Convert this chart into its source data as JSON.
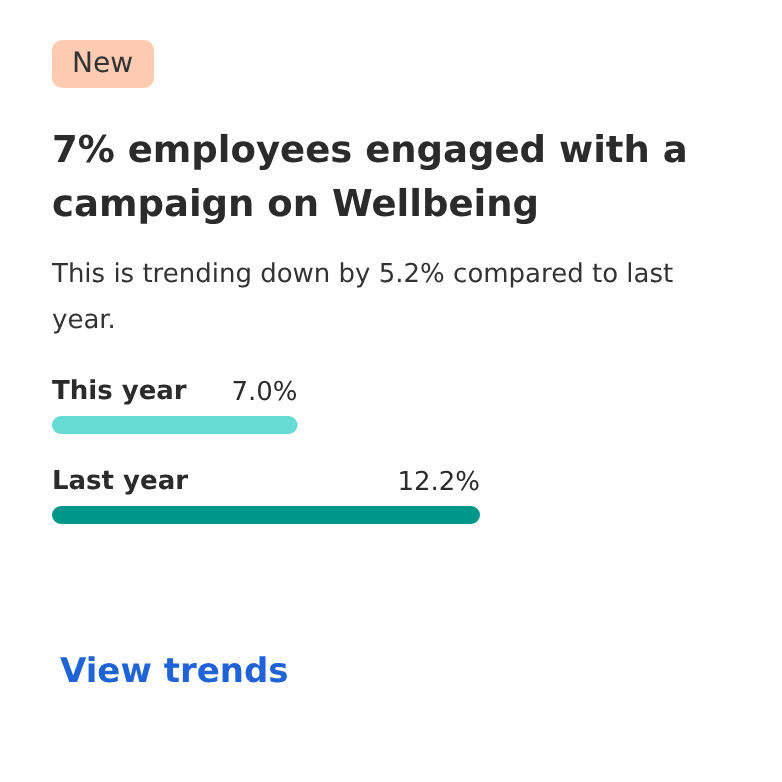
{
  "chart_data": {
    "type": "bar",
    "orientation": "horizontal",
    "tick_labels": "y",
    "title": "7% employees engaged with a campaign on Wellbeing",
    "subtitle": "This is trending down by 5.2% compared to last year.",
    "categories": [
      "This year",
      "Last year"
    ],
    "values": [
      7.0,
      12.2
    ],
    "colors": [
      "#66dbd3",
      "#00968a"
    ],
    "value_labels": [
      "7.0%",
      "12.2%"
    ],
    "annotations": [
      "New",
      "View trends"
    ]
  }
}
